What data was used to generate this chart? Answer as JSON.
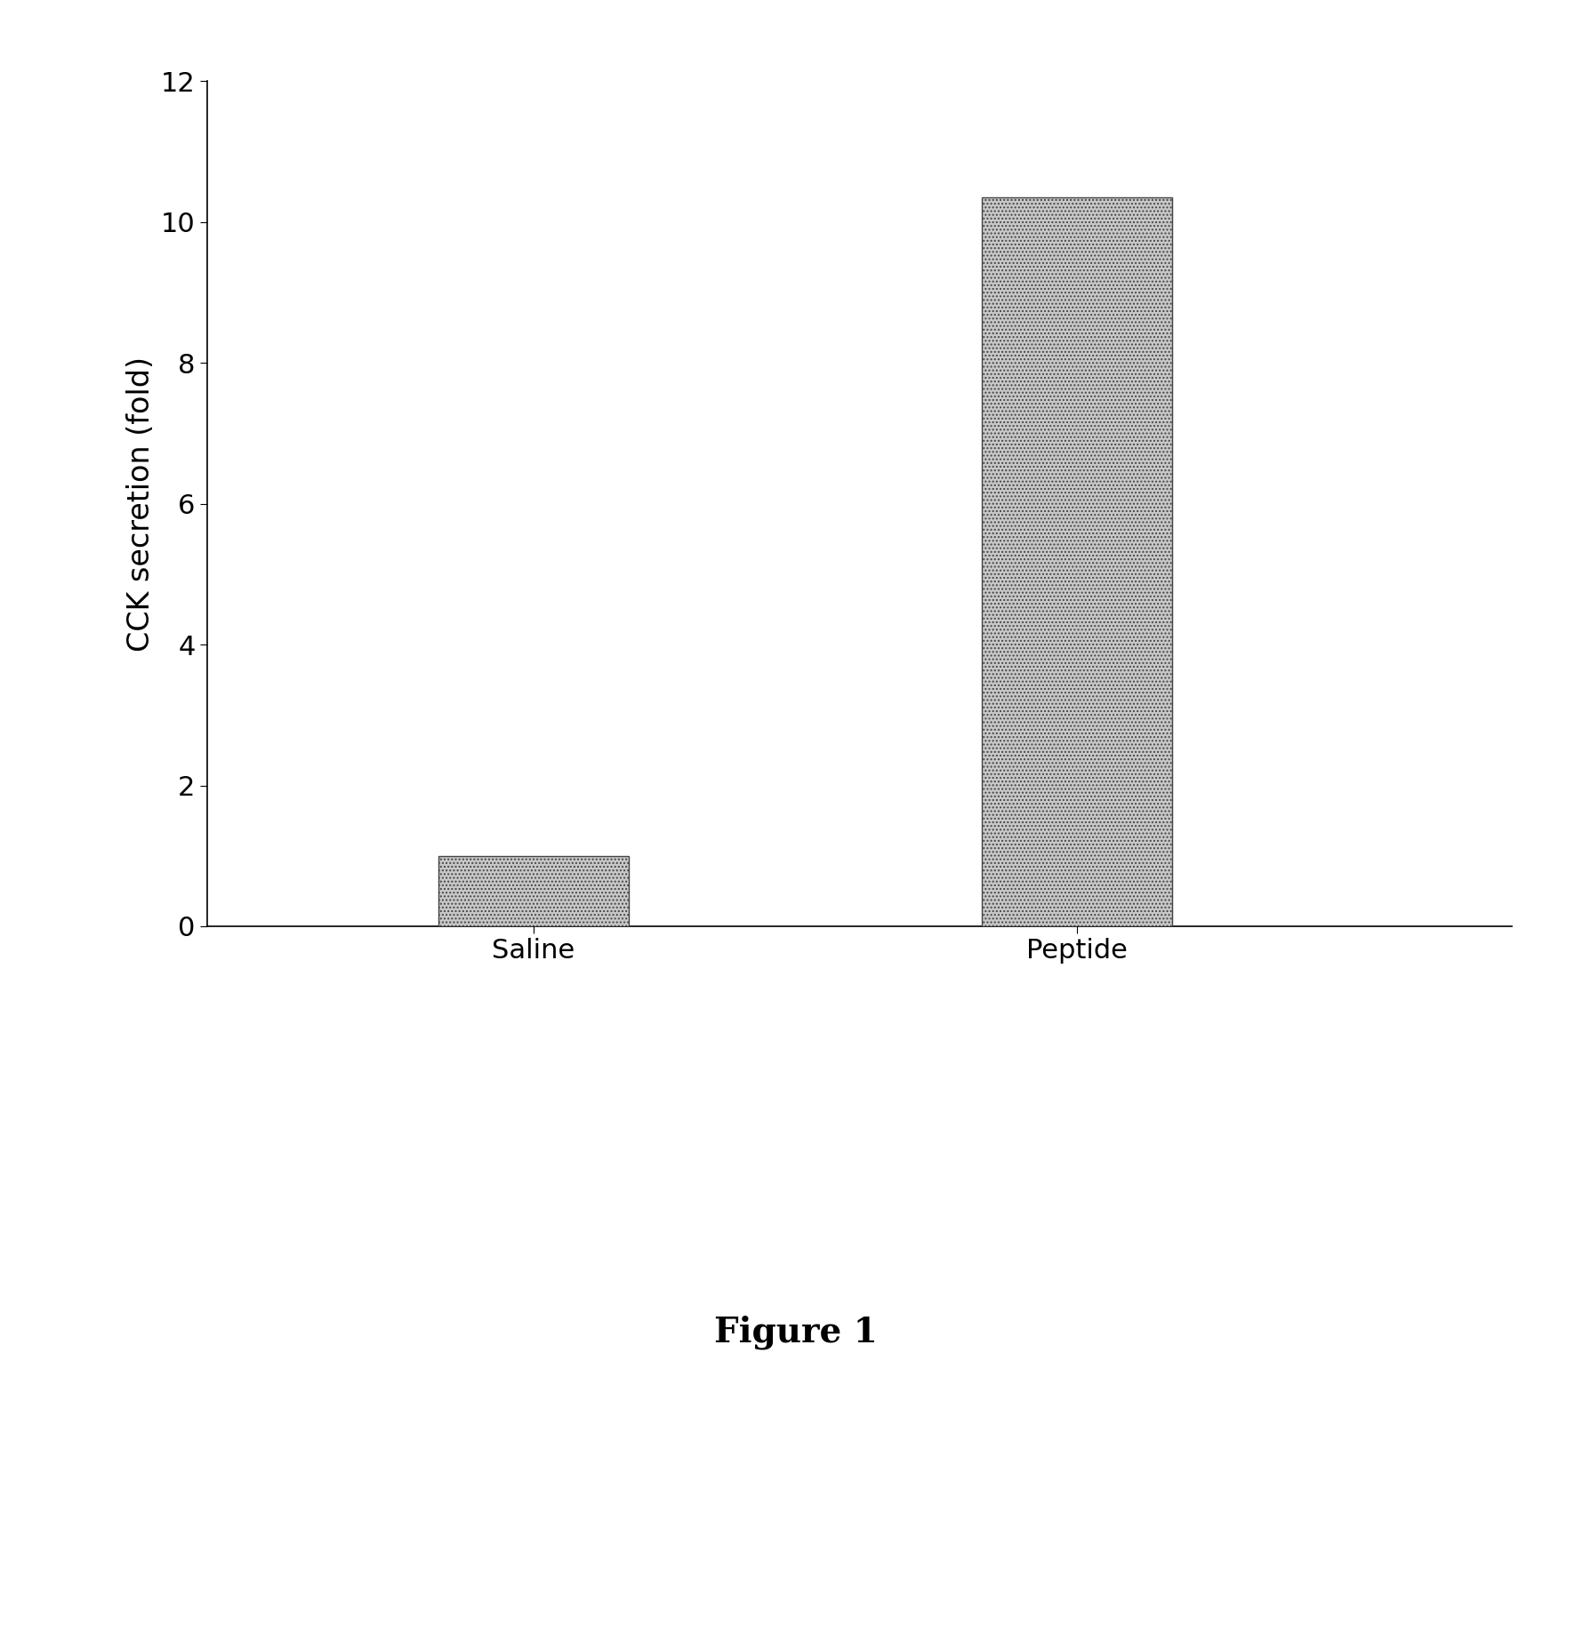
{
  "categories": [
    "Saline",
    "Peptide"
  ],
  "values": [
    1.0,
    10.35
  ],
  "bar_color": "#c8c8c8",
  "bar_edgecolor": "#444444",
  "bar_hatch": "....",
  "ylim": [
    0,
    12
  ],
  "yticks": [
    0,
    2,
    4,
    6,
    8,
    10,
    12
  ],
  "ylabel": "CCK secretion (fold)",
  "ylabel_fontsize": 24,
  "tick_fontsize": 22,
  "xlabel_fontsize": 22,
  "figure_caption": "Figure 1",
  "caption_fontsize": 28,
  "background_color": "#ffffff",
  "bar_width": 0.35,
  "bar_positions": [
    1,
    2
  ],
  "xlim": [
    0.4,
    2.8
  ]
}
